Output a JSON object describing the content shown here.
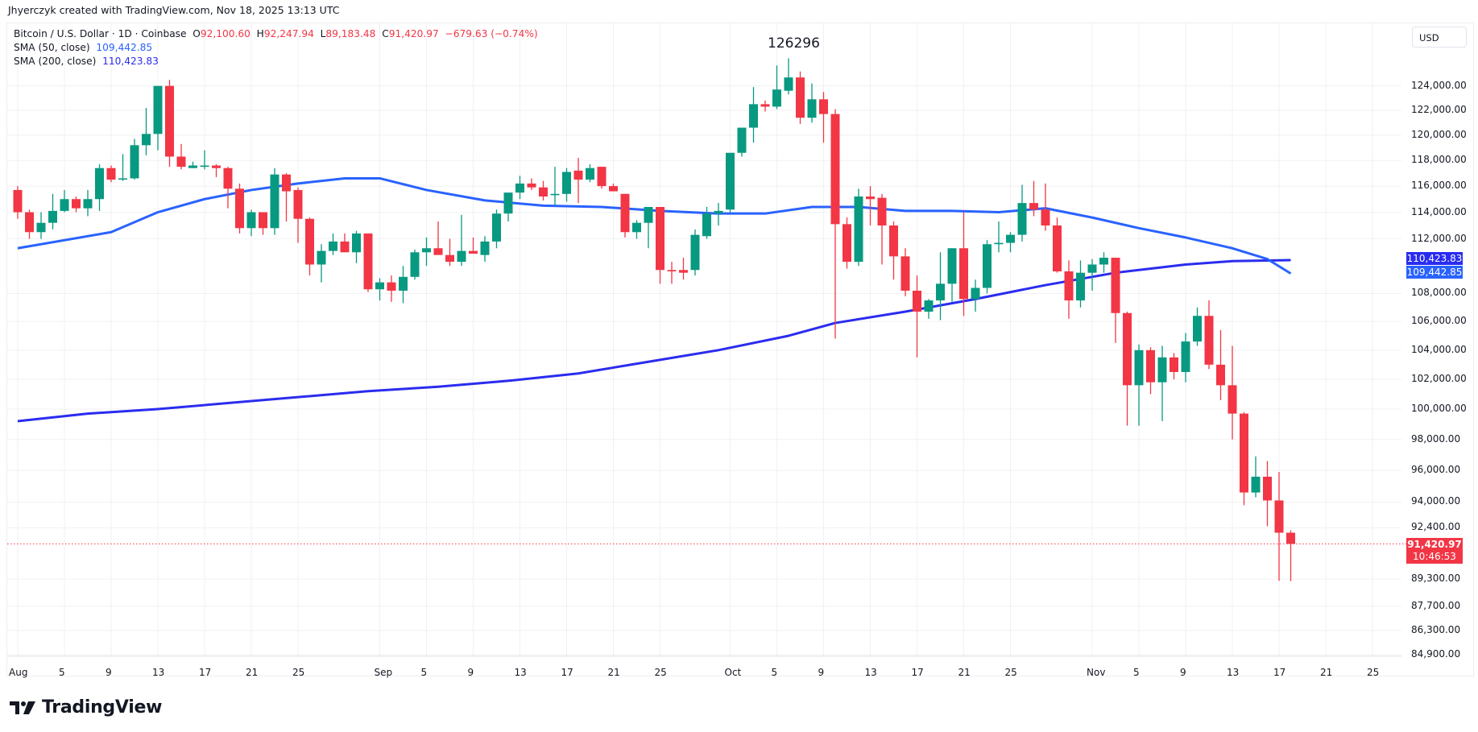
{
  "credit": "Jhyerczyk created with TradingView.com, Nov 18, 2025 13:13 UTC",
  "legend": {
    "symbol": "Bitcoin / U.S. Dollar · 1D · Coinbase",
    "o_label": "O",
    "o": "92,100.60",
    "h_label": "H",
    "h": "92,247.94",
    "l_label": "L",
    "l": "89,183.48",
    "c_label": "C",
    "c": "91,420.97",
    "change": "−679.63 (−0.74%)",
    "sma50_label": "SMA (50, close)",
    "sma50": "109,442.85",
    "sma200_label": "SMA (200, close)",
    "sma200": "110,423.83"
  },
  "currency": "USD",
  "annotation": "126296",
  "price_tags": {
    "sma200": "110,423.83",
    "sma50": "109,442.85",
    "last": "91,420.97",
    "countdown": "10:46:53"
  },
  "colors": {
    "up": "#089981",
    "down": "#f23645",
    "sma50": "#2962ff",
    "sma200": "#2a2cf0",
    "grid": "#f0f1f3"
  },
  "logo_text": "TradingView",
  "chart_data": {
    "type": "candlestick",
    "title": "Bitcoin / U.S. Dollar · 1D · Coinbase",
    "y_scale": "log",
    "yticks": [
      124000,
      122000,
      120000,
      118000,
      116000,
      114000,
      112000,
      108000,
      106000,
      104000,
      102000,
      100000,
      98000,
      96000,
      94000,
      92400,
      89300,
      87700,
      86300,
      84900
    ],
    "ytick_labels": [
      "124,000.00",
      "122,000.00",
      "120,000.00",
      "118,000.00",
      "116,000.00",
      "114,000.00",
      "112,000.00",
      "108,000.00",
      "106,000.00",
      "104,000.00",
      "102,000.00",
      "100,000.00",
      "98,000.00",
      "96,000.00",
      "94,000.00",
      "92,400.00",
      "89,300.00",
      "87,700.00",
      "86,300.00",
      "84,900.00"
    ],
    "xticks": [
      {
        "day": 0,
        "label": "Aug"
      },
      {
        "day": 4,
        "label": "5"
      },
      {
        "day": 8,
        "label": "9"
      },
      {
        "day": 12,
        "label": "13"
      },
      {
        "day": 16,
        "label": "17"
      },
      {
        "day": 20,
        "label": "21"
      },
      {
        "day": 24,
        "label": "25"
      },
      {
        "day": 31,
        "label": "Sep"
      },
      {
        "day": 35,
        "label": "5"
      },
      {
        "day": 39,
        "label": "9"
      },
      {
        "day": 43,
        "label": "13"
      },
      {
        "day": 47,
        "label": "17"
      },
      {
        "day": 51,
        "label": "21"
      },
      {
        "day": 55,
        "label": "25"
      },
      {
        "day": 61,
        "label": "Oct"
      },
      {
        "day": 65,
        "label": "5"
      },
      {
        "day": 69,
        "label": "9"
      },
      {
        "day": 73,
        "label": "13"
      },
      {
        "day": 77,
        "label": "17"
      },
      {
        "day": 81,
        "label": "21"
      },
      {
        "day": 85,
        "label": "25"
      },
      {
        "day": 92,
        "label": "Nov"
      },
      {
        "day": 96,
        "label": "5"
      },
      {
        "day": 100,
        "label": "9"
      },
      {
        "day": 104,
        "label": "13"
      },
      {
        "day": 108,
        "label": "17"
      },
      {
        "day": 112,
        "label": "21"
      },
      {
        "day": 116,
        "label": "25"
      }
    ],
    "candles": [
      [
        115700,
        116000,
        113500,
        114000
      ],
      [
        114000,
        114200,
        112000,
        112500
      ],
      [
        112500,
        114000,
        112000,
        113200
      ],
      [
        113200,
        115400,
        112700,
        114100
      ],
      [
        114100,
        115700,
        114000,
        115000
      ],
      [
        115000,
        115200,
        114000,
        114300
      ],
      [
        114300,
        115700,
        113700,
        115000
      ],
      [
        115000,
        117700,
        114100,
        117400
      ],
      [
        117400,
        117600,
        116300,
        116500
      ],
      [
        116500,
        118500,
        116400,
        116600
      ],
      [
        116600,
        119700,
        116500,
        119200
      ],
      [
        119200,
        122200,
        118400,
        120100
      ],
      [
        120100,
        122200,
        118800,
        124000
      ],
      [
        124000,
        124500,
        117500,
        118300
      ],
      [
        118300,
        119300,
        117300,
        117500
      ],
      [
        117400,
        117900,
        117400,
        117600
      ],
      [
        117500,
        118800,
        117300,
        117600
      ],
      [
        117600,
        117700,
        116700,
        117400
      ],
      [
        117400,
        117500,
        114300,
        115800
      ],
      [
        115800,
        116200,
        112400,
        112800
      ],
      [
        112800,
        114200,
        112200,
        114000
      ],
      [
        114000,
        114000,
        112300,
        112800
      ],
      [
        112800,
        117400,
        112300,
        116900
      ],
      [
        116900,
        117000,
        113300,
        115600
      ],
      [
        115700,
        115900,
        111700,
        113500
      ],
      [
        113500,
        113600,
        109300,
        110100
      ],
      [
        110100,
        111600,
        108800,
        111100
      ],
      [
        111100,
        112400,
        110800,
        111800
      ],
      [
        111800,
        112400,
        111200,
        111000
      ],
      [
        111000,
        112600,
        110200,
        112400
      ],
      [
        112400,
        112400,
        108100,
        108300
      ],
      [
        108300,
        109100,
        107500,
        108800
      ],
      [
        108800,
        109300,
        107400,
        108200
      ],
      [
        108200,
        110000,
        107300,
        109200
      ],
      [
        109200,
        111200,
        109000,
        111000
      ],
      [
        111000,
        112100,
        110000,
        111300
      ],
      [
        111300,
        113300,
        111000,
        110800
      ],
      [
        110800,
        112000,
        110000,
        110300
      ],
      [
        110300,
        113800,
        110000,
        111100
      ],
      [
        111100,
        112100,
        110900,
        110900
      ],
      [
        110800,
        112200,
        110300,
        111800
      ],
      [
        111800,
        114200,
        111300,
        113900
      ],
      [
        113900,
        114900,
        113300,
        115500
      ],
      [
        115500,
        116800,
        115000,
        116200
      ],
      [
        116200,
        116600,
        115700,
        115900
      ],
      [
        115900,
        116400,
        114900,
        115200
      ],
      [
        115300,
        117500,
        114500,
        115400
      ],
      [
        115400,
        117400,
        114800,
        117100
      ],
      [
        117200,
        118200,
        114700,
        116500
      ],
      [
        116500,
        117700,
        116300,
        117400
      ],
      [
        117500,
        117500,
        115800,
        116000
      ],
      [
        116000,
        116200,
        115700,
        115600
      ],
      [
        115400,
        115400,
        112100,
        112500
      ],
      [
        112500,
        113400,
        112000,
        113200
      ],
      [
        113200,
        114400,
        111300,
        114400
      ],
      [
        114400,
        114400,
        108700,
        109700
      ],
      [
        109700,
        110300,
        108700,
        109600
      ],
      [
        109700,
        110600,
        109000,
        109500
      ],
      [
        109700,
        112700,
        109300,
        112300
      ],
      [
        112200,
        114400,
        112000,
        113900
      ],
      [
        113900,
        114700,
        113000,
        114100
      ],
      [
        114200,
        118200,
        114000,
        118600
      ],
      [
        118600,
        120100,
        118300,
        120600
      ],
      [
        120600,
        123900,
        119400,
        122500
      ],
      [
        122500,
        122800,
        121900,
        122300
      ],
      [
        122300,
        125700,
        122100,
        123700
      ],
      [
        123600,
        126300,
        123300,
        124700
      ],
      [
        124700,
        125200,
        120900,
        121400
      ],
      [
        121400,
        124200,
        121000,
        122900
      ],
      [
        122900,
        123500,
        119400,
        121700
      ],
      [
        121700,
        122100,
        104800,
        113100
      ],
      [
        113100,
        113600,
        109800,
        110300
      ],
      [
        110300,
        115800,
        110000,
        115200
      ],
      [
        115200,
        116000,
        113000,
        115000
      ],
      [
        115100,
        115400,
        110100,
        113000
      ],
      [
        113000,
        113300,
        109000,
        110700
      ],
      [
        110700,
        111300,
        107800,
        108200
      ],
      [
        108200,
        109300,
        103500,
        106700
      ],
      [
        106700,
        107600,
        106200,
        107500
      ],
      [
        107500,
        111000,
        106100,
        108700
      ],
      [
        108700,
        111300,
        107400,
        111300
      ],
      [
        111300,
        114000,
        106400,
        107600
      ],
      [
        107600,
        109000,
        106700,
        108400
      ],
      [
        108400,
        111900,
        108000,
        111600
      ],
      [
        111600,
        113300,
        111000,
        111700
      ],
      [
        111700,
        112500,
        111000,
        112300
      ],
      [
        112300,
        116100,
        111800,
        114700
      ],
      [
        114700,
        116400,
        113700,
        114200
      ],
      [
        114200,
        116200,
        112600,
        113000
      ],
      [
        113000,
        113600,
        109500,
        109600
      ],
      [
        109600,
        110400,
        106200,
        107500
      ],
      [
        107500,
        110400,
        107000,
        109500
      ],
      [
        109500,
        110500,
        108200,
        110100
      ],
      [
        110100,
        111000,
        109500,
        110600
      ],
      [
        110600,
        110600,
        104500,
        106600
      ],
      [
        106600,
        106700,
        98900,
        101600
      ],
      [
        101600,
        104400,
        98900,
        104000
      ],
      [
        104000,
        104200,
        101000,
        101800
      ],
      [
        101800,
        104300,
        99200,
        103500
      ],
      [
        103500,
        103800,
        102000,
        102500
      ],
      [
        102500,
        105200,
        101800,
        104600
      ],
      [
        104600,
        107000,
        104300,
        106400
      ],
      [
        106400,
        107500,
        102700,
        103000
      ],
      [
        103000,
        105400,
        100600,
        101600
      ],
      [
        101600,
        104300,
        98000,
        99700
      ],
      [
        99700,
        99800,
        93800,
        94600
      ],
      [
        94600,
        96900,
        94300,
        95600
      ],
      [
        95600,
        96600,
        92500,
        94100
      ],
      [
        94100,
        95900,
        89200,
        92100
      ],
      [
        92100,
        92250,
        89180,
        91420
      ]
    ],
    "sma50_points": [
      [
        0,
        111300
      ],
      [
        8,
        112500
      ],
      [
        12,
        114000
      ],
      [
        16,
        115000
      ],
      [
        20,
        115700
      ],
      [
        24,
        116200
      ],
      [
        28,
        116600
      ],
      [
        31,
        116600
      ],
      [
        35,
        115700
      ],
      [
        40,
        114900
      ],
      [
        45,
        114500
      ],
      [
        50,
        114400
      ],
      [
        55,
        114100
      ],
      [
        60,
        113900
      ],
      [
        64,
        113900
      ],
      [
        68,
        114400
      ],
      [
        72,
        114400
      ],
      [
        76,
        114100
      ],
      [
        80,
        114100
      ],
      [
        84,
        114000
      ],
      [
        88,
        114300
      ],
      [
        92,
        113600
      ],
      [
        96,
        112800
      ],
      [
        100,
        112100
      ],
      [
        104,
        111300
      ],
      [
        107,
        110500
      ],
      [
        109,
        109443
      ]
    ],
    "sma200_points": [
      [
        0,
        99200
      ],
      [
        6,
        99700
      ],
      [
        12,
        100000
      ],
      [
        18,
        100400
      ],
      [
        24,
        100800
      ],
      [
        30,
        101200
      ],
      [
        36,
        101500
      ],
      [
        42,
        101900
      ],
      [
        48,
        102400
      ],
      [
        54,
        103200
      ],
      [
        60,
        104000
      ],
      [
        66,
        105000
      ],
      [
        70,
        105900
      ],
      [
        76,
        106700
      ],
      [
        82,
        107600
      ],
      [
        88,
        108600
      ],
      [
        94,
        109500
      ],
      [
        100,
        110100
      ],
      [
        104,
        110350
      ],
      [
        109,
        110424
      ]
    ]
  }
}
